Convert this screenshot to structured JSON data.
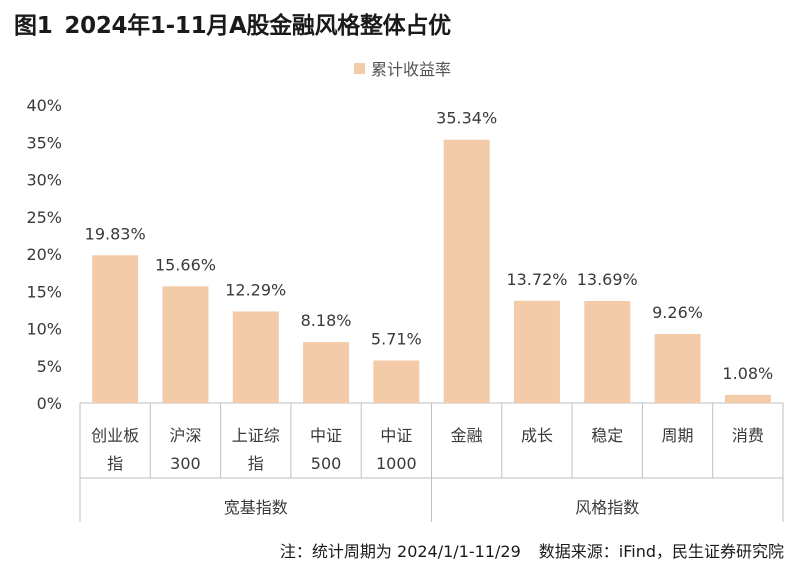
{
  "title": {
    "figure_no": "图1",
    "text": "2024年1-11月A股金融风格整体占优"
  },
  "note": {
    "stat_period": "注：统计周期为 2024/1/1-11/29",
    "source": "数据来源：iFind，民生证券研究院"
  },
  "colors": {
    "bar": "#f4cba8",
    "axis": "#bfbfbf",
    "text": "#3a3a3a"
  },
  "chart_data": {
    "type": "bar",
    "title": "2024年1-11月A股金融风格整体占优",
    "legend": "累计收益率",
    "legend_position": "top-center",
    "ylabel": "",
    "ylim": [
      0,
      40
    ],
    "yticks": [
      "0%",
      "5%",
      "10%",
      "15%",
      "20%",
      "25%",
      "30%",
      "35%",
      "40%"
    ],
    "grid": false,
    "categories": [
      [
        "创业板",
        "指"
      ],
      [
        "沪深",
        "300"
      ],
      [
        "上证综",
        "指"
      ],
      [
        "中证",
        "500"
      ],
      [
        "中证",
        "1000"
      ],
      [
        "金融"
      ],
      [
        "成长"
      ],
      [
        "稳定"
      ],
      [
        "周期"
      ],
      [
        "消费"
      ]
    ],
    "values": [
      19.83,
      15.66,
      12.29,
      8.18,
      5.71,
      35.34,
      13.72,
      13.69,
      9.26,
      1.08
    ],
    "value_labels": [
      "19.83%",
      "15.66%",
      "12.29%",
      "8.18%",
      "5.71%",
      "35.34%",
      "13.72%",
      "13.69%",
      "9.26%",
      "1.08%"
    ],
    "groups": [
      {
        "label": "宽基指数",
        "count": 5
      },
      {
        "label": "风格指数",
        "count": 5
      }
    ]
  }
}
